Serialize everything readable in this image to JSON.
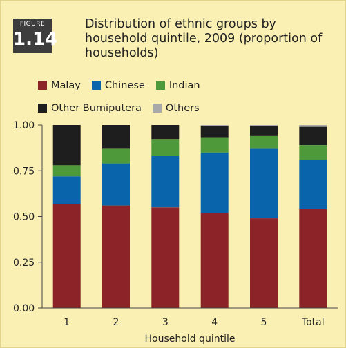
{
  "figure": {
    "kicker": "FIGURE",
    "number": "1.14"
  },
  "chart_data": {
    "type": "bar",
    "stacked": true,
    "title": "Distribution of ethnic groups by household quintile, 2009 (proportion of households)",
    "xlabel": "Household quintile",
    "ylabel": "",
    "categories": [
      "1",
      "2",
      "3",
      "4",
      "5",
      "Total"
    ],
    "ylim": [
      0,
      1
    ],
    "yticks": [
      "0.00",
      "0.25",
      "0.50",
      "0.75",
      "1.00"
    ],
    "grid": false,
    "legend_position": "top",
    "series": [
      {
        "name": "Malay",
        "color": "#8c2328",
        "values": [
          0.57,
          0.56,
          0.55,
          0.52,
          0.49,
          0.54
        ]
      },
      {
        "name": "Chinese",
        "color": "#0a64ac",
        "values": [
          0.15,
          0.23,
          0.28,
          0.33,
          0.38,
          0.27
        ]
      },
      {
        "name": "Indian",
        "color": "#4e9a3a",
        "values": [
          0.06,
          0.08,
          0.09,
          0.08,
          0.07,
          0.08
        ]
      },
      {
        "name": "Other Bumiputera",
        "color": "#1e1e1e",
        "values": [
          0.22,
          0.13,
          0.08,
          0.065,
          0.055,
          0.1
        ]
      },
      {
        "name": "Others",
        "color": "#a9a9a9",
        "values": [
          0.0,
          0.0,
          0.0,
          0.005,
          0.005,
          0.01
        ]
      }
    ]
  }
}
